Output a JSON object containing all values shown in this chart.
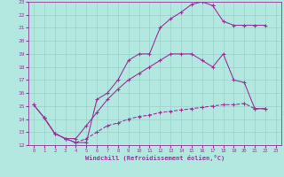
{
  "background_color": "#b3e8e0",
  "grid_color": "#9fd4cc",
  "line_color": "#993399",
  "marker": "+",
  "xlabel": "Windchill (Refroidissement éolien,°C)",
  "xlim": [
    -0.5,
    23.5
  ],
  "ylim": [
    12,
    23
  ],
  "xticks": [
    0,
    1,
    2,
    3,
    4,
    5,
    6,
    7,
    8,
    9,
    10,
    11,
    12,
    13,
    14,
    15,
    16,
    17,
    18,
    19,
    20,
    21,
    22,
    23
  ],
  "yticks": [
    12,
    13,
    14,
    15,
    16,
    17,
    18,
    19,
    20,
    21,
    22,
    23
  ],
  "line1_x": [
    0,
    1,
    2,
    3,
    4,
    5,
    6,
    7,
    8,
    9,
    10,
    11,
    12,
    13,
    14,
    15,
    16,
    17
  ],
  "line1_y": [
    15.1,
    14.1,
    12.9,
    12.5,
    12.2,
    12.2,
    15.5,
    16.0,
    17.0,
    18.5,
    19.0,
    19.0,
    21.0,
    21.7,
    22.2,
    22.8,
    23.0,
    22.7
  ],
  "line1b_x": [
    17,
    18,
    19,
    20,
    21,
    22
  ],
  "line1b_y": [
    22.7,
    21.5,
    21.2,
    21.2,
    21.2,
    21.2
  ],
  "line2_x": [
    0,
    1,
    2,
    3,
    4,
    5,
    6,
    7,
    8,
    9,
    10,
    11,
    12,
    13,
    14,
    15,
    16,
    17,
    18,
    19,
    20,
    21,
    22
  ],
  "line2_y": [
    15.1,
    14.1,
    12.9,
    12.5,
    12.5,
    13.5,
    14.5,
    15.5,
    16.3,
    17.0,
    17.5,
    18.0,
    18.5,
    19.0,
    19.0,
    19.0,
    18.5,
    18.0,
    19.0,
    17.0,
    16.8,
    14.8,
    14.8
  ],
  "line3_x": [
    1,
    2,
    3,
    4,
    5,
    6,
    7,
    8,
    9,
    10,
    11,
    12,
    13,
    14,
    15,
    16,
    17,
    18,
    19,
    20,
    21,
    22
  ],
  "line3_y": [
    14.1,
    12.9,
    12.5,
    12.2,
    12.5,
    13.0,
    13.5,
    13.7,
    14.0,
    14.2,
    14.3,
    14.5,
    14.6,
    14.7,
    14.8,
    14.9,
    15.0,
    15.1,
    15.1,
    15.2,
    14.8,
    14.8
  ]
}
